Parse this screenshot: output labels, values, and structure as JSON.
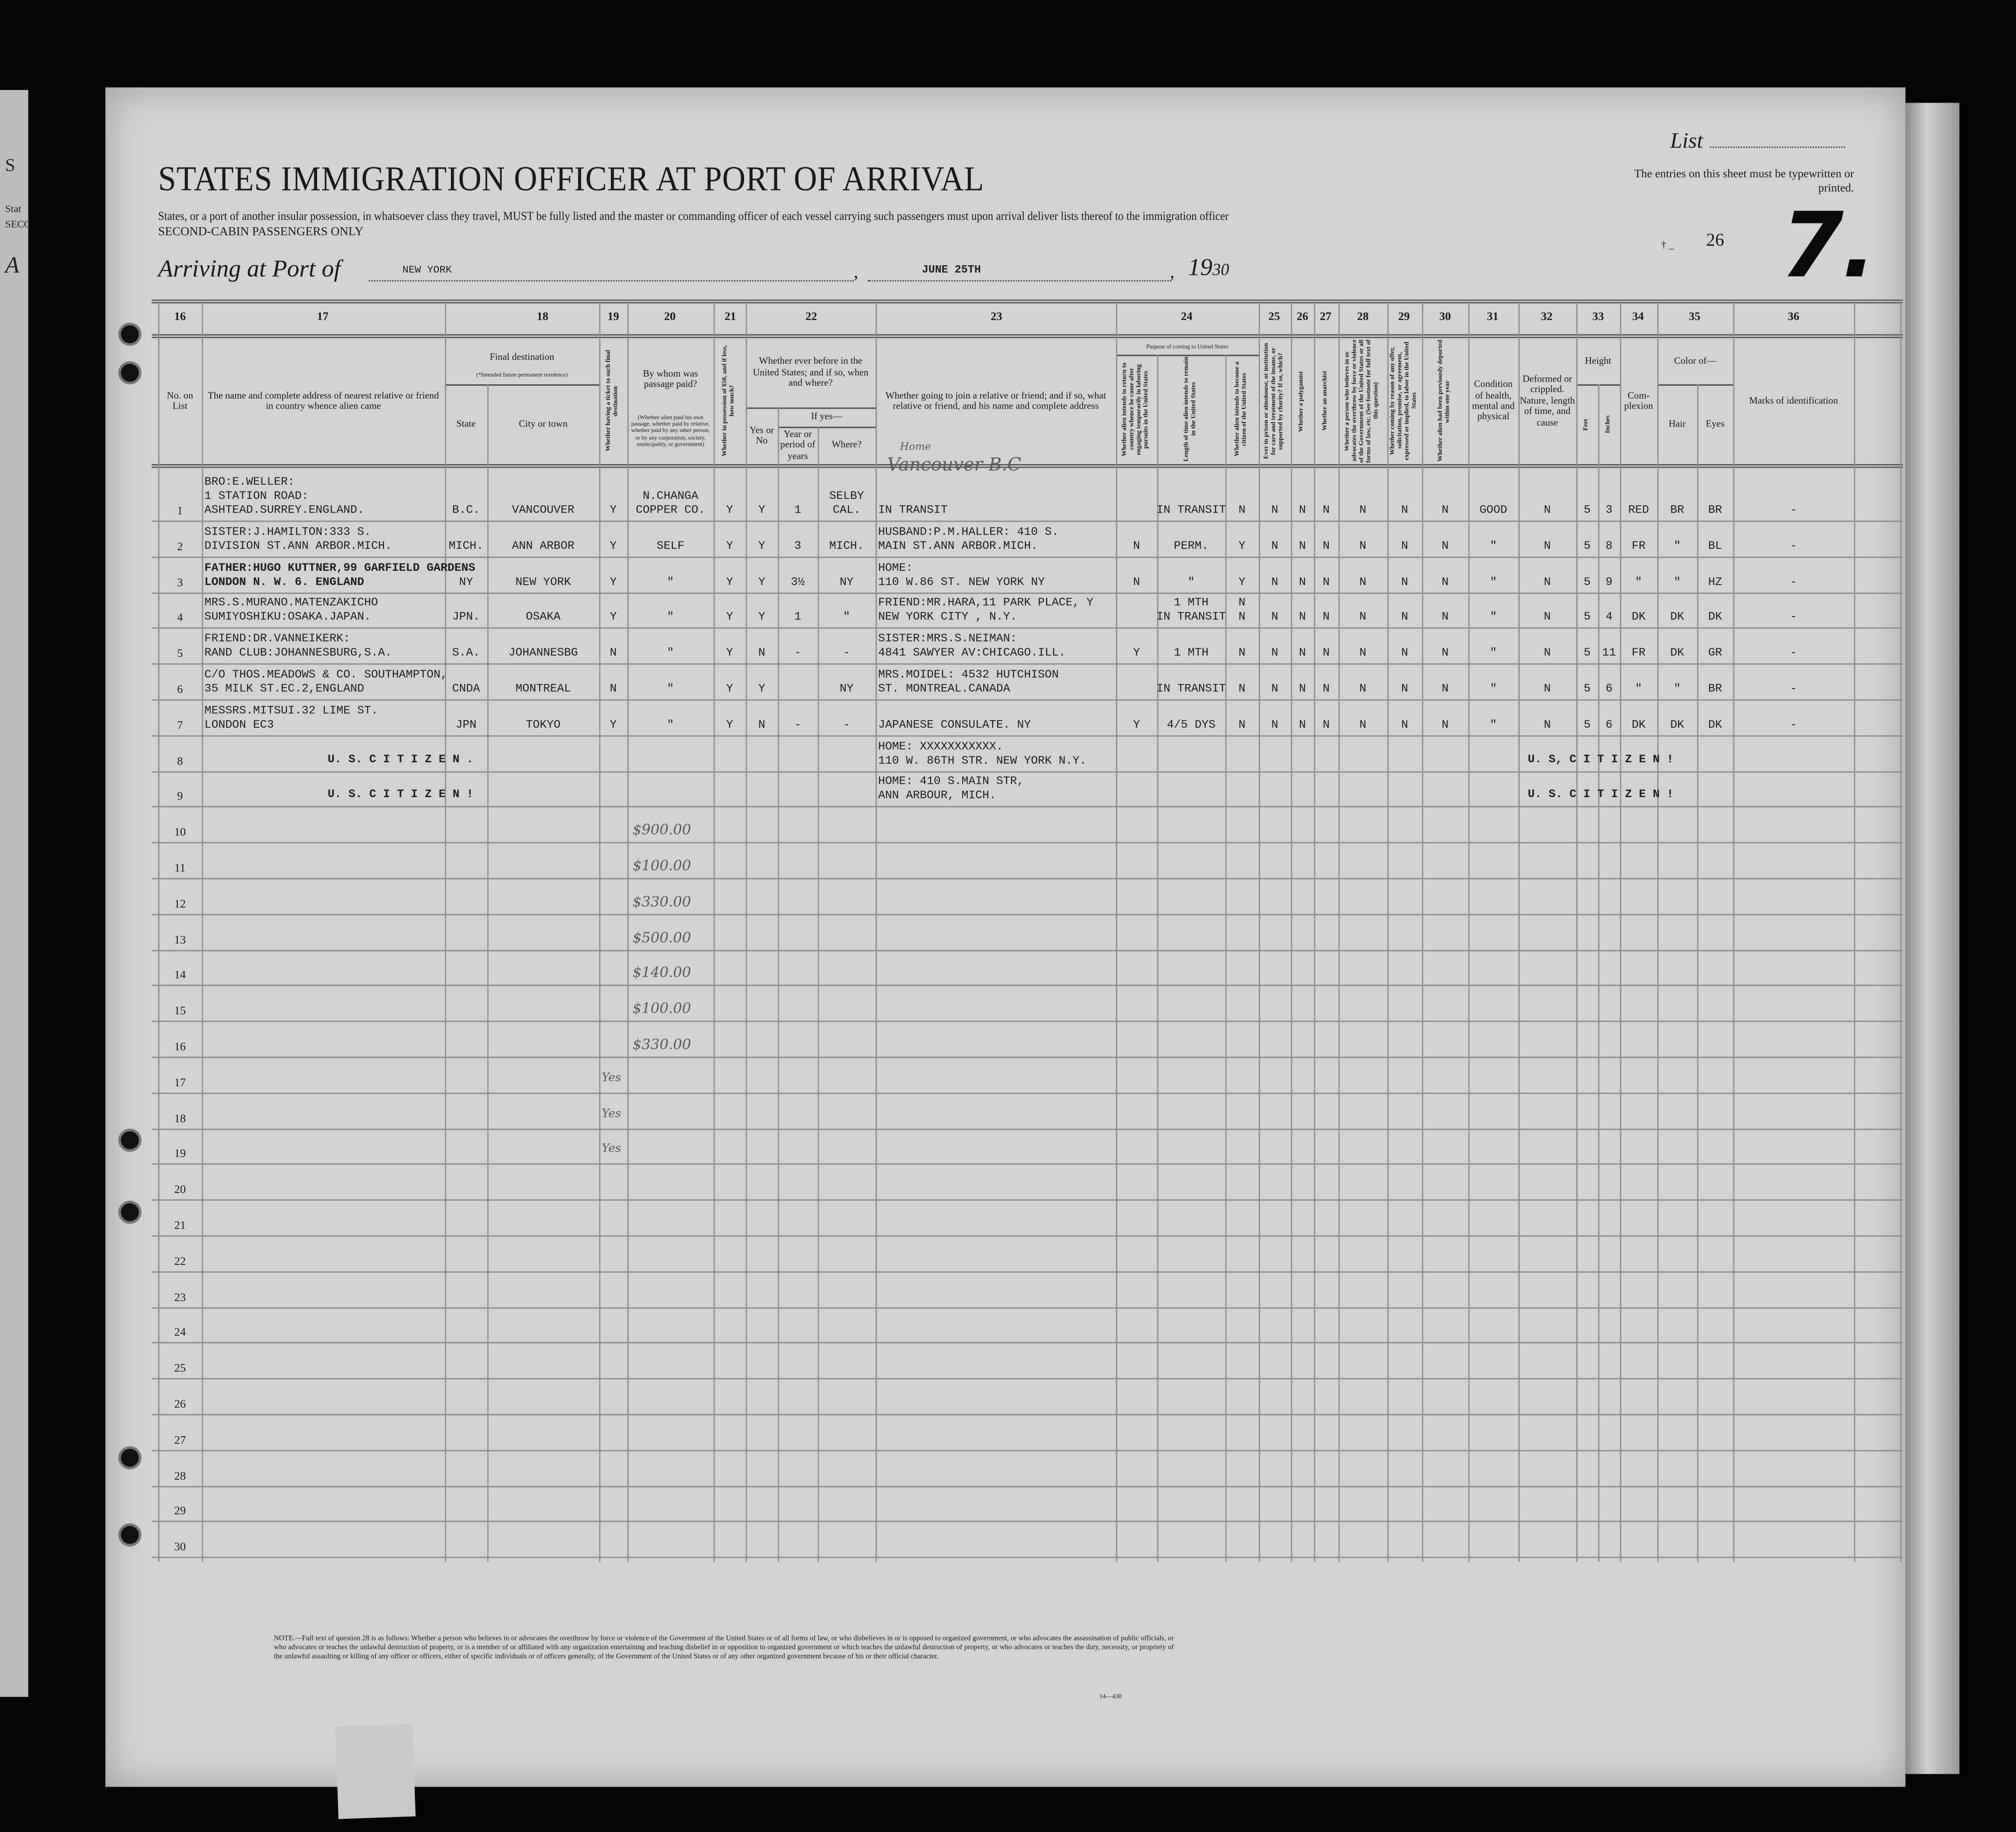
{
  "header": {
    "title": "STATES IMMIGRATION OFFICER AT PORT OF ARRIVAL",
    "subtitle": "States, or a port of another insular possession, in whatsoever class they travel, MUST be fully listed and the master or commanding officer of each vessel carrying such passengers must upon arrival deliver lists thereof to the immigration officer",
    "class_line": "SECOND-CABIN PASSENGERS ONLY",
    "arriving_label": "Arriving at Port of",
    "port": "NEW YORK",
    "date": "JUNE 25TH",
    "year_prefix": "19",
    "year_suffix": "30",
    "list_label": "List",
    "instruction": "The entries on this sheet must be typewritten or printed.",
    "sheet_code": "26",
    "sheet_number": "7."
  },
  "left_page_fragment": [
    "S",
    "Stat",
    "SECO",
    "A"
  ],
  "table": {
    "column_numbers": [
      "16",
      "17",
      "18",
      "19",
      "20",
      "21",
      "22",
      "23",
      "24",
      "25",
      "26",
      "27",
      "28",
      "29",
      "30",
      "31",
      "32",
      "33",
      "34",
      "35",
      "36"
    ],
    "headers": {
      "no_on_list": "No. on List",
      "relative": "The name and complete address of nearest relative or friend in country whence alien came",
      "final_destination": "Final destination",
      "final_destination_note": "(*Intended future permanent residence)",
      "state": "State",
      "city": "City or town",
      "ticket": "Whether having a ticket to such final destination",
      "paid_by": "By whom was passage paid?",
      "paid_by_note": "(Whether alien paid his own passage, whether paid by relative, whether paid by any other person, or by any corporation, society, municipality, or government)",
      "money": "Whether in possession of $50, and if less, how much?",
      "before": "Whether ever before in the United States; and if so, when and where?",
      "yes_no": "Yes or No",
      "if_yes": "If yes—",
      "years": "Year or period of years",
      "where": "Where?",
      "joining": "Whether going to join a relative or friend; and if so, what relative or friend, and his name and complete address",
      "purpose": "Purpose of coming to United States",
      "purpose_return": "Whether alien intends to return to country whence he came after engaging temporarily in laboring pursuits in the United States",
      "purpose_length": "Length of time alien intends to remain in the United States",
      "purpose_citizen": "Whether alien intends to become a citizen of the United States",
      "prison": "Ever in prison or almshouse, or institution for care and treatment of the insane, or supported by charity? If so, which?",
      "polygamist": "Whether a polygamist",
      "anarchist": "Whether an anarchist",
      "q28": "Whether a person who believes in or advocates the overthrow by force or violence of the Government of the United States or all forms of law, etc. (See footnote for full text of this question)",
      "q29": "Whether coming by reason of any offer, solicitation, promise, or agreement, expressed or implied, to labor in the United States",
      "deported": "Whether alien had been previously deported within one year",
      "health": "Condition of health, mental and physical",
      "deformed": "Deformed or crippled. Nature, length of time, and cause",
      "height": "Height",
      "feet": "Feet",
      "inches": "Inches",
      "complexion": "Com-plexion",
      "color_of": "Color of—",
      "hair": "Hair",
      "eyes": "Eyes",
      "marks": "Marks of identification"
    },
    "row_numbers": [
      "1",
      "2",
      "3",
      "4",
      "5",
      "6",
      "7",
      "8",
      "9",
      "10",
      "11",
      "12",
      "13",
      "14",
      "15",
      "16",
      "17",
      "18",
      "19",
      "20",
      "21",
      "22",
      "23",
      "24",
      "25",
      "26",
      "27",
      "28",
      "29",
      "30"
    ],
    "rows": [
      {
        "relative": [
          "BRO:E.WELLER:",
          "1 STATION ROAD:",
          "ASHTEAD.SURREY.ENGLAND."
        ],
        "state": "B.C.",
        "city": "VANCOUVER",
        "ticket": "Y",
        "paid_by": [
          "N.CHANGA",
          "COPPER CO."
        ],
        "money": "Y",
        "before": "Y",
        "years": "1",
        "where": [
          "SELBY",
          "CAL."
        ],
        "joining": [
          "IN TRANSIT"
        ],
        "purpose_return": "",
        "purpose_length": "IN TRANSIT",
        "purpose_citizen": "N",
        "prison": "N",
        "polygamist": "N",
        "anarchist": "N",
        "q28": "N",
        "q29": "N",
        "deported": "N",
        "health": "GOOD",
        "deformed": "N",
        "feet": "5",
        "inches": "3",
        "complexion": "RED",
        "hair": "BR",
        "eyes": "BR",
        "marks": "-"
      },
      {
        "relative": [
          "SISTER:J.HAMILTON:333 S.",
          "DIVISION ST.ANN ARBOR.MICH."
        ],
        "state": "MICH.",
        "city": "ANN ARBOR",
        "ticket": "Y",
        "paid_by": "SELF",
        "money": "Y",
        "before": "Y",
        "years": "3",
        "where": "MICH.",
        "joining": [
          "HUSBAND:P.M.HALLER: 410 S.",
          "MAIN ST.ANN ARBOR.MICH."
        ],
        "purpose_return": "N",
        "purpose_length": "PERM.",
        "purpose_citizen": "Y",
        "prison": "N",
        "polygamist": "N",
        "anarchist": "N",
        "q28": "N",
        "q29": "N",
        "deported": "N",
        "health": "\"",
        "deformed": "N",
        "feet": "5",
        "inches": "8",
        "complexion": "FR",
        "hair": "\"",
        "eyes": "BL",
        "marks": "-"
      },
      {
        "relative": [
          "FATHER:HUGO KUTTNER,99 GARFIELD GARDENS",
          "LONDON N. W. 6. ENGLAND"
        ],
        "state": "NY",
        "city": "NEW YORK",
        "ticket": "Y",
        "paid_by": "\"",
        "money": "Y",
        "before": "Y",
        "years": "3½",
        "where": "NY",
        "joining": [
          "HOME:",
          "110 W.86 ST. NEW YORK NY"
        ],
        "purpose_return": "N",
        "purpose_length": "\"",
        "purpose_citizen": "Y",
        "prison": "N",
        "polygamist": "N",
        "anarchist": "N",
        "q28": "N",
        "q29": "N",
        "deported": "N",
        "health": "\"",
        "deformed": "N",
        "feet": "5",
        "inches": "9",
        "complexion": "\"",
        "hair": "\"",
        "eyes": "HZ",
        "marks": "-"
      },
      {
        "relative": [
          "MRS.S.MURANO.MATENZAKICHO",
          "SUMIYOSHIKU:OSAKA.JAPAN."
        ],
        "state": "JPN.",
        "city": "OSAKA",
        "ticket": "Y",
        "paid_by": "\"",
        "money": "Y",
        "before": "Y",
        "years": "1",
        "where": "\"",
        "joining": [
          "FRIEND:MR.HARA,11 PARK PLACE, Y",
          "NEW YORK CITY , N.Y."
        ],
        "purpose_return": "",
        "purpose_length": [
          "1 MTH",
          "IN TRANSIT"
        ],
        "purpose_citizen": [
          "N",
          "N"
        ],
        "prison": "N",
        "polygamist": "N",
        "anarchist": "N",
        "q28": "N",
        "q29": "N",
        "deported": "N",
        "health": "\"",
        "deformed": "N",
        "feet": "5",
        "inches": "4",
        "complexion": "DK",
        "hair": "DK",
        "eyes": "DK",
        "marks": "-"
      },
      {
        "relative": [
          "FRIEND:DR.VANNEIKERK:",
          "RAND CLUB:JOHANNESBURG,S.A."
        ],
        "state": "S.A.",
        "city": "JOHANNESBG",
        "ticket": "N",
        "paid_by": "\"",
        "money": "Y",
        "before": "N",
        "years": "-",
        "where": "-",
        "joining": [
          "SISTER:MRS.S.NEIMAN:",
          "4841 SAWYER AV:CHICAGO.ILL."
        ],
        "purpose_return": "Y",
        "purpose_length": "1 MTH",
        "purpose_citizen": "N",
        "prison": "N",
        "polygamist": "N",
        "anarchist": "N",
        "q28": "N",
        "q29": "N",
        "deported": "N",
        "health": "\"",
        "deformed": "N",
        "feet": "5",
        "inches": "11",
        "complexion": "FR",
        "hair": "DK",
        "eyes": "GR",
        "marks": "-"
      },
      {
        "relative": [
          "C/O THOS.MEADOWS & CO. SOUTHAMPTON,",
          "35 MILK ST.EC.2,ENGLAND"
        ],
        "state": "CNDA",
        "city": "MONTREAL",
        "ticket": "N",
        "paid_by": "\"",
        "money": "Y",
        "before": "Y",
        "years": "",
        "where": "NY",
        "joining": [
          "MRS.MOIDEL: 4532 HUTCHISON",
          "ST. MONTREAL.CANADA"
        ],
        "purpose_return": "",
        "purpose_length": "IN TRANSIT",
        "purpose_citizen": "N",
        "prison": "N",
        "polygamist": "N",
        "anarchist": "N",
        "q28": "N",
        "q29": "N",
        "deported": "N",
        "health": "\"",
        "deformed": "N",
        "feet": "5",
        "inches": "6",
        "complexion": "\"",
        "hair": "\"",
        "eyes": "BR",
        "marks": "-"
      },
      {
        "relative": [
          "MESSRS.MITSUI.32 LIME ST.",
          "LONDON EC3"
        ],
        "state": "JPN",
        "city": "TOKYO",
        "ticket": "Y",
        "paid_by": "\"",
        "money": "Y",
        "before": "N",
        "years": "-",
        "where": "-",
        "joining": [
          "JAPANESE CONSULATE. NY"
        ],
        "purpose_return": "Y",
        "purpose_length": "4/5 DYS",
        "purpose_citizen": "N",
        "prison": "N",
        "polygamist": "N",
        "anarchist": "N",
        "q28": "N",
        "q29": "N",
        "deported": "N",
        "health": "\"",
        "deformed": "N",
        "feet": "5",
        "inches": "6",
        "complexion": "DK",
        "hair": "DK",
        "eyes": "DK",
        "marks": "-"
      },
      {
        "citizen_left": "U. S. C I T I Z E N .",
        "joining": [
          "HOME: XXXXXXXXXXX.",
          "110 W. 86TH STR. NEW YORK N.Y."
        ],
        "citizen_right": "U. S, C I T I Z E N !"
      },
      {
        "citizen_left": "U. S. C I T I Z E N !",
        "joining": [
          "HOME: 410 S.MAIN STR,",
          "ANN ARBOUR, MICH."
        ],
        "citizen_right": "U. S. C I T I Z E N !"
      }
    ]
  },
  "handwritten": [
    "Home",
    "Vancouver B.C",
    "$900.00",
    "$100.00",
    "$330.00",
    "$500.00",
    "$140.00",
    "$100.00",
    "$330.00",
    "Yes",
    "Yes",
    "Yes"
  ],
  "footnote": "NOTE.—Full text of question 28 is as follows: Whether a person who believes in or advocates the overthrow by force or violence of the Government of the United States or of all forms of law, or who disbelieves in or is opposed to organized government, or who advocates the assassination of public officials, or who advocates or teaches the unlawful destruction of property, or is a member of or affiliated with any organization entertaining and teaching disbelief in or opposition to organized government or which teaches the unlawful destruction of property, or who advocates or teaches the duty, necessity, or propriety of the unlawful assaulting or killing of any officer or officers, either of specific individuals or of officers generally, of the Government of the United States or of any other organized government because of his or their official character.",
  "form_number": "14—430"
}
